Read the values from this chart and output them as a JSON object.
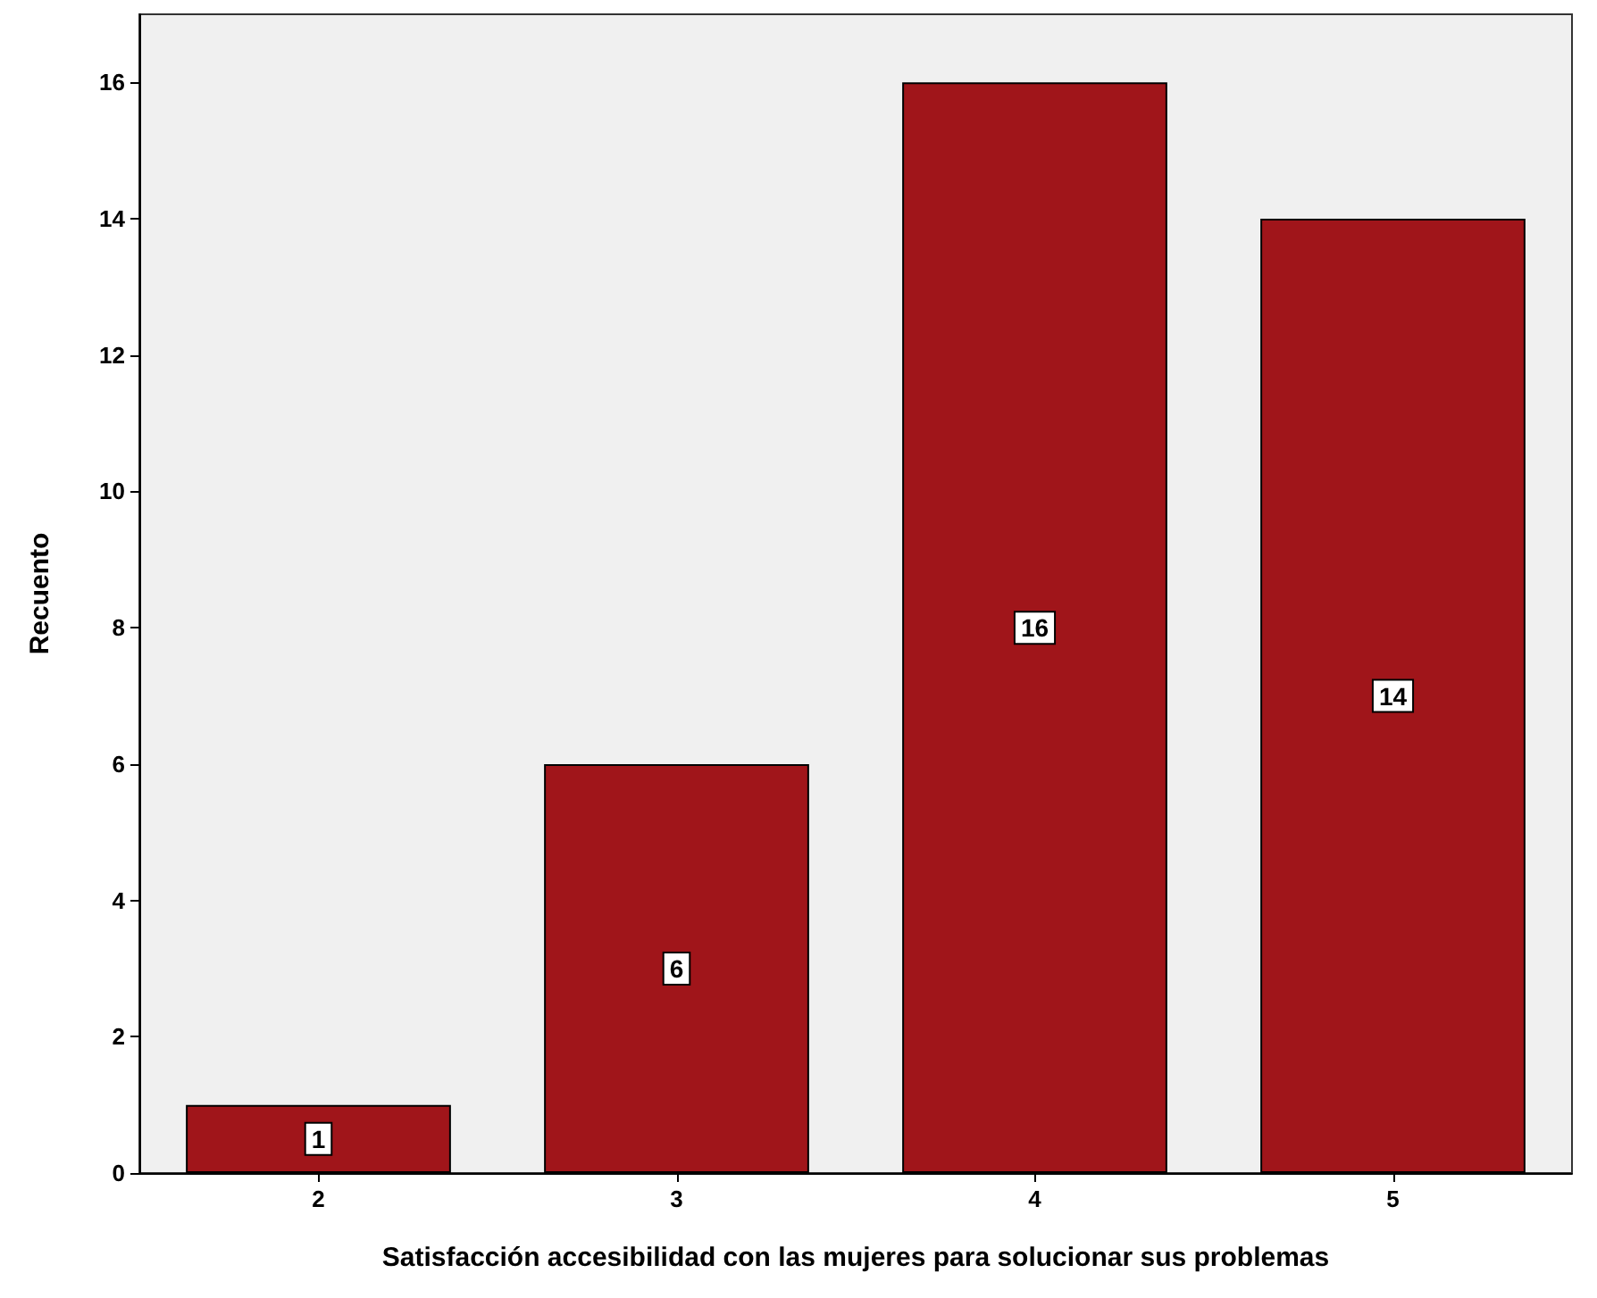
{
  "chart_data": {
    "type": "bar",
    "xlabel": "Satisfacción accesibilidad con las mujeres para solucionar sus problemas",
    "ylabel": "Recuento",
    "categories": [
      "2",
      "3",
      "4",
      "5"
    ],
    "values": [
      1,
      6,
      16,
      14
    ],
    "color": "#a0151a",
    "ylim": [
      0,
      17
    ],
    "yticks": [
      0,
      2,
      4,
      6,
      8,
      10,
      12,
      14,
      16
    ],
    "grid": false,
    "data_labels": true
  }
}
